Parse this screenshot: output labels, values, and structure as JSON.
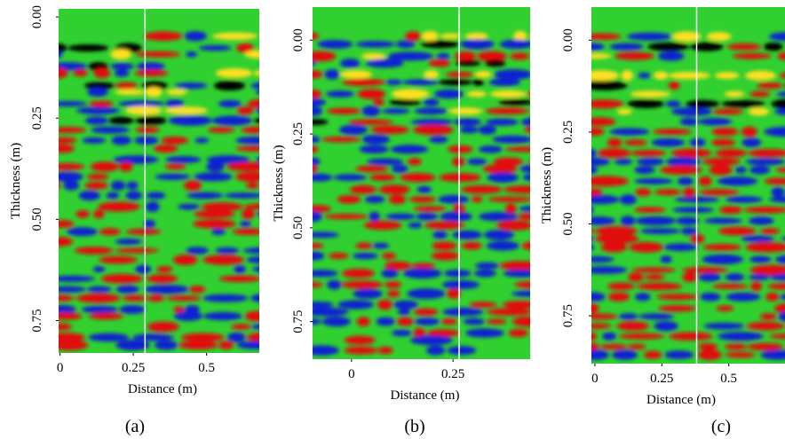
{
  "chart_data": [
    {
      "type": "radargram",
      "caption": "(a)",
      "xlabel": "Distance (m)",
      "ylabel": "Thickness (m)",
      "xlim": [
        -0.005,
        0.68
      ],
      "ylim": [
        -0.02,
        0.83
      ],
      "xticks": [
        0,
        0.25,
        0.5
      ],
      "yticks": [
        {
          "value": 0,
          "label": "0.00"
        },
        {
          "value": 0.25,
          "label": "0.25"
        },
        {
          "value": 0.5,
          "label": "0.50"
        },
        {
          "value": 0.75,
          "label": "0.75"
        }
      ],
      "marker_x": 0.29
    },
    {
      "type": "radargram",
      "caption": "(b)",
      "xlabel": "Distance (m)",
      "ylabel": "Thickness (m)",
      "xlim": [
        -0.096,
        0.44
      ],
      "ylim": [
        -0.088,
        0.85
      ],
      "xticks": [
        0,
        0.25
      ],
      "yticks": [
        {
          "value": 0,
          "label": "0.00"
        },
        {
          "value": 0.25,
          "label": "0.25"
        },
        {
          "value": 0.5,
          "label": "0.50"
        },
        {
          "value": 0.75,
          "label": "0.75"
        }
      ],
      "marker_x": 0.265
    },
    {
      "type": "radargram",
      "caption": "(c)",
      "xlabel": "Distance (m)",
      "ylabel": "Thickness (m)",
      "xlim": [
        -0.013,
        0.71
      ],
      "ylim": [
        -0.09,
        0.88
      ],
      "xticks": [
        0,
        0.25,
        0.5
      ],
      "yticks": [
        {
          "value": 0,
          "label": "0.00"
        },
        {
          "value": 0.25,
          "label": "0.25"
        },
        {
          "value": 0.5,
          "label": "0.50"
        },
        {
          "value": 0.75,
          "label": "0.75"
        }
      ],
      "marker_x": 0.38
    }
  ]
}
